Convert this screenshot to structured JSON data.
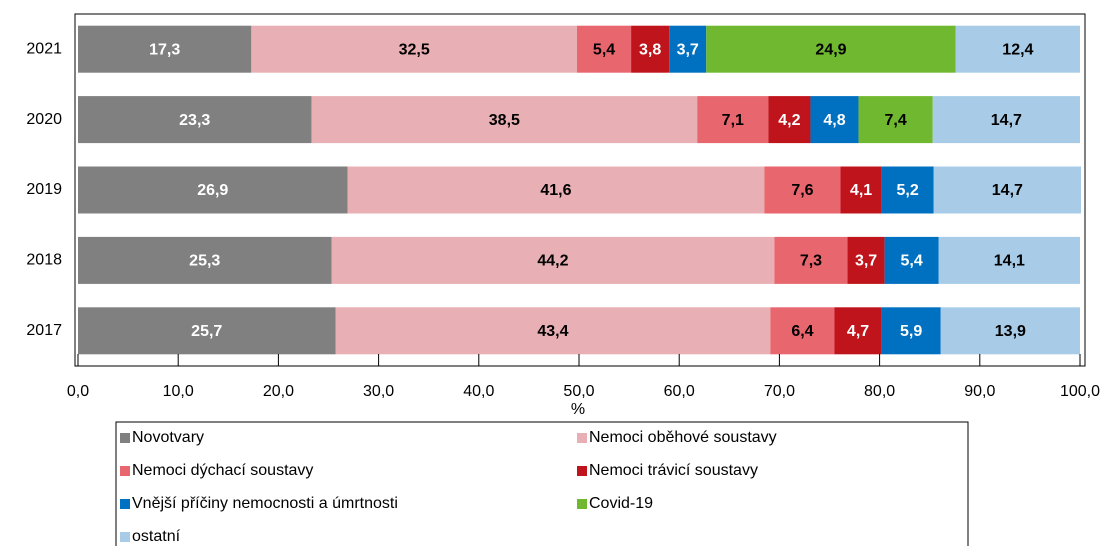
{
  "chart_data": {
    "type": "stacked-bar-horizontal",
    "x_label": "%",
    "categories": [
      "2021",
      "2020",
      "2019",
      "2018",
      "2017"
    ],
    "series": [
      {
        "name": "Novotvary",
        "color": "#808080",
        "label_color": "#ffffff",
        "values": [
          17.3,
          23.3,
          26.9,
          25.3,
          25.7
        ],
        "value_labels": [
          "17,3",
          "23,3",
          "26,9",
          "25,3",
          "25,7"
        ]
      },
      {
        "name": "Nemoci oběhové soustavy",
        "color": "#e8b0b4",
        "label_color": "#000000",
        "values": [
          32.5,
          38.5,
          41.6,
          44.2,
          43.4
        ],
        "value_labels": [
          "32,5",
          "38,5",
          "41,6",
          "44,2",
          "43,4"
        ]
      },
      {
        "name": "Nemoci dýchací soustavy",
        "color": "#e8666e",
        "label_color": "#000000",
        "values": [
          5.4,
          7.1,
          7.6,
          7.3,
          6.4
        ],
        "value_labels": [
          "5,4",
          "7,1",
          "7,6",
          "7,3",
          "6,4"
        ]
      },
      {
        "name": "Nemoci trávicí soustavy",
        "color": "#c0141c",
        "label_color": "#ffffff",
        "values": [
          3.8,
          4.2,
          4.1,
          3.7,
          4.7
        ],
        "value_labels": [
          "3,8",
          "4,2",
          "4,1",
          "3,7",
          "4,7"
        ]
      },
      {
        "name": "Vnější příčiny nemocnosti a úmrtnosti",
        "color": "#0070c0",
        "label_color": "#ffffff",
        "values": [
          3.7,
          4.8,
          5.2,
          5.4,
          5.9
        ],
        "value_labels": [
          "3,7",
          "4,8",
          "5,2",
          "5,4",
          "5,9"
        ]
      },
      {
        "name": "Covid-19",
        "color": "#70b830",
        "label_color": "#000000",
        "values": [
          24.9,
          7.4,
          null,
          null,
          null
        ],
        "value_labels": [
          "24,9",
          "7,4",
          null,
          null,
          null
        ]
      },
      {
        "name": "ostatní",
        "color": "#a8cce8",
        "label_color": "#000000",
        "values": [
          12.4,
          14.7,
          14.7,
          14.1,
          13.9
        ],
        "value_labels": [
          "12,4",
          "14,7",
          "14,7",
          "14,1",
          "13,9"
        ]
      }
    ],
    "xlim": [
      0,
      100
    ],
    "xticks": [
      {
        "value": 0,
        "label": "0,0"
      },
      {
        "value": 10,
        "label": "10,0"
      },
      {
        "value": 20,
        "label": "20,0"
      },
      {
        "value": 30,
        "label": "30,0"
      },
      {
        "value": 40,
        "label": "40,0"
      },
      {
        "value": 50,
        "label": "50,0"
      },
      {
        "value": 60,
        "label": "60,0"
      },
      {
        "value": 70,
        "label": "70,0"
      },
      {
        "value": 80,
        "label": "80,0"
      },
      {
        "value": 90,
        "label": "90,0"
      },
      {
        "value": 100,
        "label": "100,0"
      }
    ],
    "legend": "bottom"
  }
}
